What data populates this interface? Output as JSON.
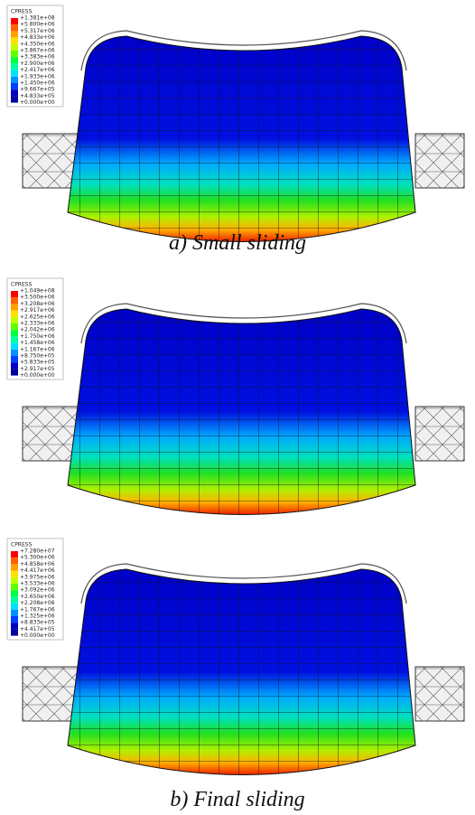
{
  "panels": [
    {
      "legend_title": "CPRESS",
      "legend_values": [
        "+1.381e+08",
        "+5.800e+06",
        "+5.317e+06",
        "+4.833e+06",
        "+4.350e+06",
        "+3.867e+06",
        "+3.383e+06",
        "+2.900e+06",
        "+2.417e+06",
        "+1.933e+06",
        "+1.450e+06",
        "+9.667e+05",
        "+4.833e+05",
        "+0.000e+00"
      ],
      "caption": "a) Small sliding"
    },
    {
      "legend_title": "CPRESS",
      "legend_values": [
        "+1.049e+08",
        "+3.500e+06",
        "+3.208e+06",
        "+2.917e+06",
        "+2.625e+06",
        "+2.333e+06",
        "+2.042e+06",
        "+1.750e+06",
        "+1.458e+06",
        "+1.167e+06",
        "+8.750e+05",
        "+5.833e+05",
        "+2.917e+05",
        "+0.000e+00"
      ]
    },
    {
      "legend_title": "CPRESS",
      "legend_values": [
        "+7.280e+07",
        "+5.300e+06",
        "+4.858e+06",
        "+4.417e+06",
        "+3.975e+06",
        "+3.533e+06",
        "+3.092e+06",
        "+2.650e+06",
        "+2.208e+06",
        "+1.767e+06",
        "+1.325e+06",
        "+8.833e+05",
        "+4.417e+05",
        "+0.000e+00"
      ],
      "caption": "b) Final sliding"
    }
  ]
}
